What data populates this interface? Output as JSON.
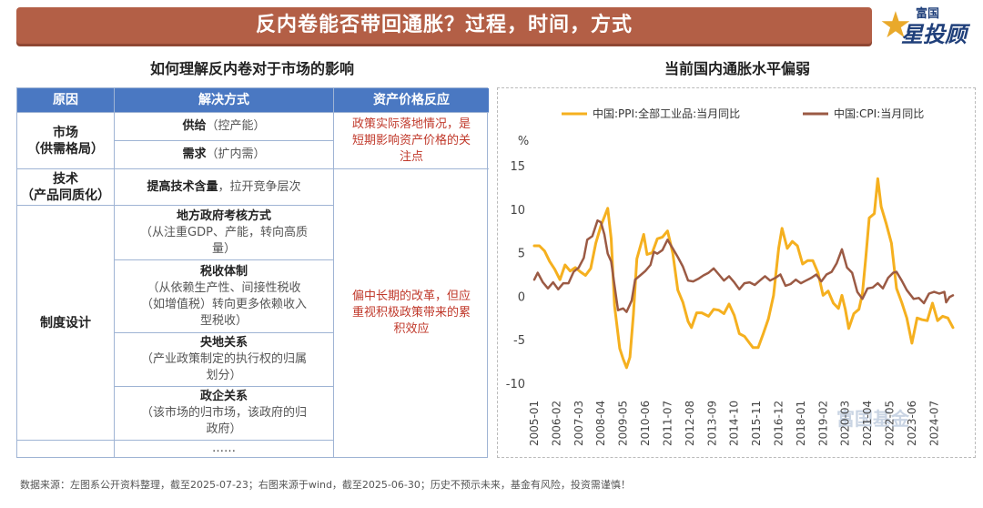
{
  "header": {
    "title": "反内卷能否带回通胀？过程，时间，方式"
  },
  "logo": {
    "top_text": "富国",
    "main_text": "星投顾"
  },
  "left_section": {
    "title": "如何理解反内卷对于市场的影响",
    "table": {
      "headers": [
        "原因",
        "解决方式",
        "资产价格反应"
      ],
      "market": {
        "cat_line1": "市场",
        "cat_line2": "（供需格局）",
        "supply_bold": "供给",
        "supply_rest": "（控产能）",
        "demand_bold": "需求",
        "demand_rest": "（扩内需）"
      },
      "tech": {
        "cat_line1": "技术",
        "cat_line2": "（产品同质化）",
        "bold": "提高技术含量",
        "rest": "，拉开竞争层次"
      },
      "institution": {
        "cat": "制度设计",
        "local_gov": {
          "title": "地方政府考核方式",
          "l1": "（从注重GDP、产能，转向高质",
          "l2": "量）"
        },
        "tax": {
          "title": "税收体制",
          "l1": "（从依赖生产性、间接性税收",
          "l2": "（如增值税）转向更多依赖收入",
          "l3": "型税收）"
        },
        "central_local": {
          "title": "央地关系",
          "l1": "（产业政策制定的执行权的归属",
          "l2": "划分）"
        },
        "gov_enterprise": {
          "title": "政企关系",
          "l1": "（该市场的归市场，该政府的归",
          "l2": "政府）"
        },
        "ellipsis": "……"
      },
      "reaction_short": {
        "l1": "政策实际落地情况，是",
        "l2": "短期影响资产价格的关",
        "l3": "注点"
      },
      "reaction_long": {
        "l1": "偏中长期的改革，但应",
        "l2": "重视积极政策带来的累",
        "l3": "积效应"
      }
    }
  },
  "right_section": {
    "title": "当前国内通胀水平偏弱"
  },
  "chart_data": {
    "type": "line",
    "title": "当前国内通胀水平偏弱",
    "ylabel": "%",
    "ylim": [
      -10,
      15
    ],
    "yticks": [
      15,
      10,
      5,
      0,
      -5,
      -10
    ],
    "xlim": [
      "2005-01",
      "2025-06"
    ],
    "xticks": [
      "2005-01",
      "2006-02",
      "2007-03",
      "2008-04",
      "2009-05",
      "2010-06",
      "2011-07",
      "2012-08",
      "2013-09",
      "2014-10",
      "2015-11",
      "2016-12",
      "2018-01",
      "2019-02",
      "2020-03",
      "2021-04",
      "2022-05",
      "2023-06",
      "2024-07"
    ],
    "legend_position": "top",
    "series": [
      {
        "name": "中国:PPI:全部工业品:当月同比",
        "color": "#f5b01f",
        "points": [
          [
            "2005-01",
            5.8
          ],
          [
            "2005-04",
            5.8
          ],
          [
            "2005-07",
            5.2
          ],
          [
            "2005-10",
            4.0
          ],
          [
            "2006-01",
            3.1
          ],
          [
            "2006-04",
            1.9
          ],
          [
            "2006-07",
            3.6
          ],
          [
            "2006-10",
            2.9
          ],
          [
            "2007-01",
            3.3
          ],
          [
            "2007-04",
            2.8
          ],
          [
            "2007-07",
            2.4
          ],
          [
            "2007-10",
            3.2
          ],
          [
            "2008-01",
            6.1
          ],
          [
            "2008-04",
            8.1
          ],
          [
            "2008-08",
            10.1
          ],
          [
            "2008-10",
            6.6
          ],
          [
            "2008-12",
            -1.1
          ],
          [
            "2009-03",
            -6.0
          ],
          [
            "2009-05",
            -7.2
          ],
          [
            "2009-07",
            -8.2
          ],
          [
            "2009-09",
            -7.0
          ],
          [
            "2009-11",
            -2.1
          ],
          [
            "2010-01",
            4.3
          ],
          [
            "2010-05",
            7.1
          ],
          [
            "2010-07",
            4.8
          ],
          [
            "2010-10",
            5.0
          ],
          [
            "2011-01",
            6.6
          ],
          [
            "2011-04",
            6.8
          ],
          [
            "2011-07",
            7.5
          ],
          [
            "2011-10",
            5.0
          ],
          [
            "2012-01",
            0.7
          ],
          [
            "2012-04",
            -0.7
          ],
          [
            "2012-07",
            -2.9
          ],
          [
            "2012-09",
            -3.6
          ],
          [
            "2012-12",
            -1.9
          ],
          [
            "2013-03",
            -1.9
          ],
          [
            "2013-07",
            -2.3
          ],
          [
            "2013-10",
            -1.5
          ],
          [
            "2014-01",
            -1.6
          ],
          [
            "2014-04",
            -2.0
          ],
          [
            "2014-07",
            -0.9
          ],
          [
            "2014-10",
            -2.2
          ],
          [
            "2015-01",
            -4.3
          ],
          [
            "2015-04",
            -4.6
          ],
          [
            "2015-07",
            -5.4
          ],
          [
            "2015-09",
            -5.9
          ],
          [
            "2015-12",
            -5.9
          ],
          [
            "2016-03",
            -4.3
          ],
          [
            "2016-06",
            -2.6
          ],
          [
            "2016-09",
            0.1
          ],
          [
            "2016-12",
            5.5
          ],
          [
            "2017-02",
            7.8
          ],
          [
            "2017-05",
            5.5
          ],
          [
            "2017-08",
            6.3
          ],
          [
            "2017-11",
            5.8
          ],
          [
            "2018-02",
            3.7
          ],
          [
            "2018-05",
            4.1
          ],
          [
            "2018-08",
            4.1
          ],
          [
            "2018-11",
            2.7
          ],
          [
            "2019-02",
            0.1
          ],
          [
            "2019-05",
            0.6
          ],
          [
            "2019-08",
            -0.8
          ],
          [
            "2019-11",
            -1.4
          ],
          [
            "2020-01",
            0.1
          ],
          [
            "2020-03",
            -1.5
          ],
          [
            "2020-05",
            -3.7
          ],
          [
            "2020-08",
            -2.0
          ],
          [
            "2020-11",
            -1.5
          ],
          [
            "2021-01",
            0.3
          ],
          [
            "2021-03",
            4.4
          ],
          [
            "2021-05",
            9.0
          ],
          [
            "2021-08",
            9.5
          ],
          [
            "2021-10",
            13.5
          ],
          [
            "2021-12",
            10.3
          ],
          [
            "2022-03",
            8.3
          ],
          [
            "2022-06",
            6.1
          ],
          [
            "2022-09",
            0.9
          ],
          [
            "2022-12",
            -0.7
          ],
          [
            "2023-03",
            -2.5
          ],
          [
            "2023-06",
            -5.4
          ],
          [
            "2023-09",
            -2.5
          ],
          [
            "2023-12",
            -2.7
          ],
          [
            "2024-03",
            -2.8
          ],
          [
            "2024-06",
            -0.8
          ],
          [
            "2024-09",
            -2.8
          ],
          [
            "2024-12",
            -2.3
          ],
          [
            "2025-03",
            -2.5
          ],
          [
            "2025-06",
            -3.6
          ]
        ]
      },
      {
        "name": "中国:CPI:当月同比",
        "color": "#9b5a44",
        "points": [
          [
            "2005-01",
            1.9
          ],
          [
            "2005-03",
            2.7
          ],
          [
            "2005-06",
            1.6
          ],
          [
            "2005-09",
            0.9
          ],
          [
            "2005-12",
            1.6
          ],
          [
            "2006-03",
            0.8
          ],
          [
            "2006-06",
            1.5
          ],
          [
            "2006-09",
            1.5
          ],
          [
            "2006-12",
            2.8
          ],
          [
            "2007-03",
            3.3
          ],
          [
            "2007-06",
            4.4
          ],
          [
            "2007-08",
            6.5
          ],
          [
            "2007-11",
            6.9
          ],
          [
            "2008-02",
            8.7
          ],
          [
            "2008-04",
            8.5
          ],
          [
            "2008-06",
            7.1
          ],
          [
            "2008-08",
            4.9
          ],
          [
            "2008-10",
            4.0
          ],
          [
            "2008-12",
            1.2
          ],
          [
            "2009-02",
            -1.6
          ],
          [
            "2009-05",
            -1.4
          ],
          [
            "2009-07",
            -1.8
          ],
          [
            "2009-10",
            -0.5
          ],
          [
            "2009-12",
            1.9
          ],
          [
            "2010-03",
            2.4
          ],
          [
            "2010-06",
            2.9
          ],
          [
            "2010-09",
            3.6
          ],
          [
            "2010-11",
            5.1
          ],
          [
            "2011-01",
            4.9
          ],
          [
            "2011-04",
            5.3
          ],
          [
            "2011-07",
            6.5
          ],
          [
            "2011-10",
            5.5
          ],
          [
            "2012-01",
            4.5
          ],
          [
            "2012-04",
            3.4
          ],
          [
            "2012-07",
            1.8
          ],
          [
            "2012-10",
            1.7
          ],
          [
            "2013-01",
            2.0
          ],
          [
            "2013-04",
            2.4
          ],
          [
            "2013-07",
            2.7
          ],
          [
            "2013-10",
            3.2
          ],
          [
            "2014-01",
            2.5
          ],
          [
            "2014-04",
            1.8
          ],
          [
            "2014-07",
            2.3
          ],
          [
            "2014-10",
            1.6
          ],
          [
            "2015-01",
            0.8
          ],
          [
            "2015-04",
            1.5
          ],
          [
            "2015-07",
            1.6
          ],
          [
            "2015-10",
            1.3
          ],
          [
            "2016-01",
            1.8
          ],
          [
            "2016-04",
            2.3
          ],
          [
            "2016-07",
            1.8
          ],
          [
            "2016-10",
            2.1
          ],
          [
            "2017-01",
            2.5
          ],
          [
            "2017-04",
            1.2
          ],
          [
            "2017-07",
            1.4
          ],
          [
            "2017-10",
            1.9
          ],
          [
            "2018-01",
            1.5
          ],
          [
            "2018-04",
            1.8
          ],
          [
            "2018-07",
            2.1
          ],
          [
            "2018-10",
            2.5
          ],
          [
            "2019-01",
            1.7
          ],
          [
            "2019-04",
            2.5
          ],
          [
            "2019-07",
            2.8
          ],
          [
            "2019-10",
            3.8
          ],
          [
            "2020-01",
            5.4
          ],
          [
            "2020-04",
            3.3
          ],
          [
            "2020-07",
            2.7
          ],
          [
            "2020-10",
            0.5
          ],
          [
            "2021-01",
            -0.3
          ],
          [
            "2021-04",
            0.9
          ],
          [
            "2021-07",
            1.0
          ],
          [
            "2021-10",
            1.5
          ],
          [
            "2022-01",
            0.9
          ],
          [
            "2022-04",
            2.1
          ],
          [
            "2022-07",
            2.7
          ],
          [
            "2022-09",
            2.8
          ],
          [
            "2022-12",
            1.8
          ],
          [
            "2023-03",
            0.7
          ],
          [
            "2023-07",
            -0.3
          ],
          [
            "2023-10",
            -0.2
          ],
          [
            "2024-01",
            -0.8
          ],
          [
            "2024-04",
            0.3
          ],
          [
            "2024-07",
            0.5
          ],
          [
            "2024-10",
            0.3
          ],
          [
            "2025-01",
            0.5
          ],
          [
            "2025-02",
            -0.7
          ],
          [
            "2025-04",
            -0.1
          ],
          [
            "2025-06",
            0.1
          ]
        ]
      }
    ],
    "watermark": "富国基金"
  },
  "footer": {
    "text": "数据来源：左图系公开资料整理，截至2025-07-23；右图来源于wind，截至2025-06-30；历史不预示未来，基金有风险，投资需谨慎！"
  }
}
